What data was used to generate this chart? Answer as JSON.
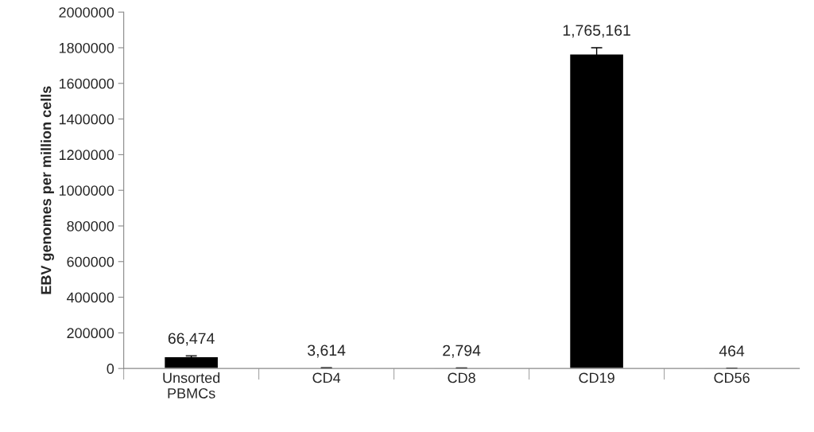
{
  "chart_data": {
    "type": "bar",
    "ylabel": "EBV genomes per million cells",
    "categories": [
      "Unsorted\nPBMCs",
      "CD4",
      "CD8",
      "CD19",
      "CD56"
    ],
    "values": [
      66474,
      3614,
      2794,
      1765161,
      464
    ],
    "errors": [
      5000,
      1000,
      800,
      35000,
      300
    ],
    "value_labels": [
      "66,474",
      "3,614",
      "2,794",
      "1,765,161",
      "464"
    ],
    "color": "#000000",
    "ylim": [
      0,
      2000000
    ],
    "yticks": [
      0,
      200000,
      400000,
      600000,
      800000,
      1000000,
      1200000,
      1400000,
      1600000,
      1800000,
      2000000
    ],
    "grid": false,
    "legend": false
  }
}
